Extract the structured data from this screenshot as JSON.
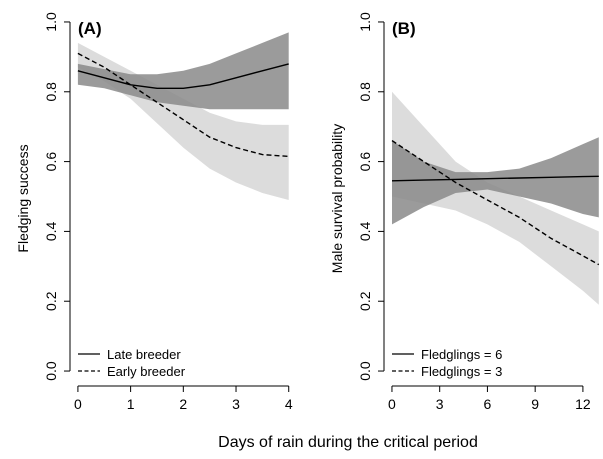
{
  "shared_xlabel": "Days of rain during the critical period",
  "colors": {
    "dark_band": "#8a8a8a",
    "light_band": "#dcdcdc",
    "line": "#000000"
  },
  "chart_data": [
    {
      "type": "line",
      "panel_label": "(A)",
      "xlabel": "",
      "ylabel": "Fledging success",
      "xlim": [
        -0.15,
        4.1
      ],
      "ylim": [
        -0.04,
        1.04
      ],
      "xticks": [
        0,
        1,
        2,
        3,
        4
      ],
      "yticks": [
        0.0,
        0.2,
        0.4,
        0.6,
        0.8,
        1.0
      ],
      "ytick_labels": [
        "0.0",
        "0.2",
        "0.4",
        "0.6",
        "0.8",
        "1.0"
      ],
      "legend_position": "bottom-left",
      "series": [
        {
          "name": "Late breeder",
          "style": "solid",
          "band": "dark",
          "x": [
            0,
            0.5,
            1,
            1.5,
            2,
            2.5,
            3,
            3.5,
            4
          ],
          "y": [
            0.86,
            0.84,
            0.82,
            0.81,
            0.81,
            0.82,
            0.84,
            0.86,
            0.88
          ],
          "upper": [
            0.88,
            0.865,
            0.85,
            0.85,
            0.86,
            0.88,
            0.91,
            0.94,
            0.97
          ],
          "lower": [
            0.82,
            0.81,
            0.79,
            0.77,
            0.76,
            0.75,
            0.75,
            0.75,
            0.75
          ]
        },
        {
          "name": "Early breeder",
          "style": "dashed",
          "band": "light",
          "x": [
            0,
            0.5,
            1,
            1.5,
            2,
            2.5,
            3,
            3.5,
            4
          ],
          "y": [
            0.91,
            0.87,
            0.82,
            0.77,
            0.72,
            0.67,
            0.64,
            0.62,
            0.615
          ],
          "upper": [
            0.94,
            0.9,
            0.86,
            0.82,
            0.78,
            0.74,
            0.715,
            0.705,
            0.705
          ],
          "lower": [
            0.87,
            0.83,
            0.78,
            0.71,
            0.64,
            0.58,
            0.54,
            0.51,
            0.49
          ]
        }
      ]
    },
    {
      "type": "line",
      "panel_label": "(B)",
      "xlabel": "",
      "ylabel": "Male survival probability",
      "xlim": [
        -0.5,
        13.2
      ],
      "ylim": [
        -0.04,
        1.04
      ],
      "xticks": [
        0,
        3,
        6,
        9,
        12
      ],
      "yticks": [
        0.0,
        0.2,
        0.4,
        0.6,
        0.8,
        1.0
      ],
      "ytick_labels": [
        "0.0",
        "0.2",
        "0.4",
        "0.6",
        "0.8",
        "1.0"
      ],
      "legend_position": "bottom-left",
      "series": [
        {
          "name": "Fledglings = 6",
          "style": "solid",
          "band": "dark",
          "x": [
            0,
            2,
            4,
            6,
            8,
            10,
            12,
            13
          ],
          "y": [
            0.545,
            0.547,
            0.549,
            0.551,
            0.553,
            0.555,
            0.557,
            0.558
          ],
          "upper": [
            0.66,
            0.6,
            0.57,
            0.57,
            0.58,
            0.61,
            0.65,
            0.67
          ],
          "lower": [
            0.42,
            0.47,
            0.51,
            0.52,
            0.5,
            0.48,
            0.45,
            0.44
          ]
        },
        {
          "name": "Fledglings = 3",
          "style": "dashed",
          "band": "light",
          "x": [
            0,
            2,
            4,
            6,
            8,
            10,
            12,
            13
          ],
          "y": [
            0.66,
            0.6,
            0.54,
            0.49,
            0.44,
            0.38,
            0.33,
            0.305
          ],
          "upper": [
            0.8,
            0.7,
            0.6,
            0.54,
            0.5,
            0.46,
            0.42,
            0.4
          ],
          "lower": [
            0.5,
            0.48,
            0.46,
            0.42,
            0.37,
            0.3,
            0.23,
            0.19
          ]
        }
      ]
    }
  ]
}
